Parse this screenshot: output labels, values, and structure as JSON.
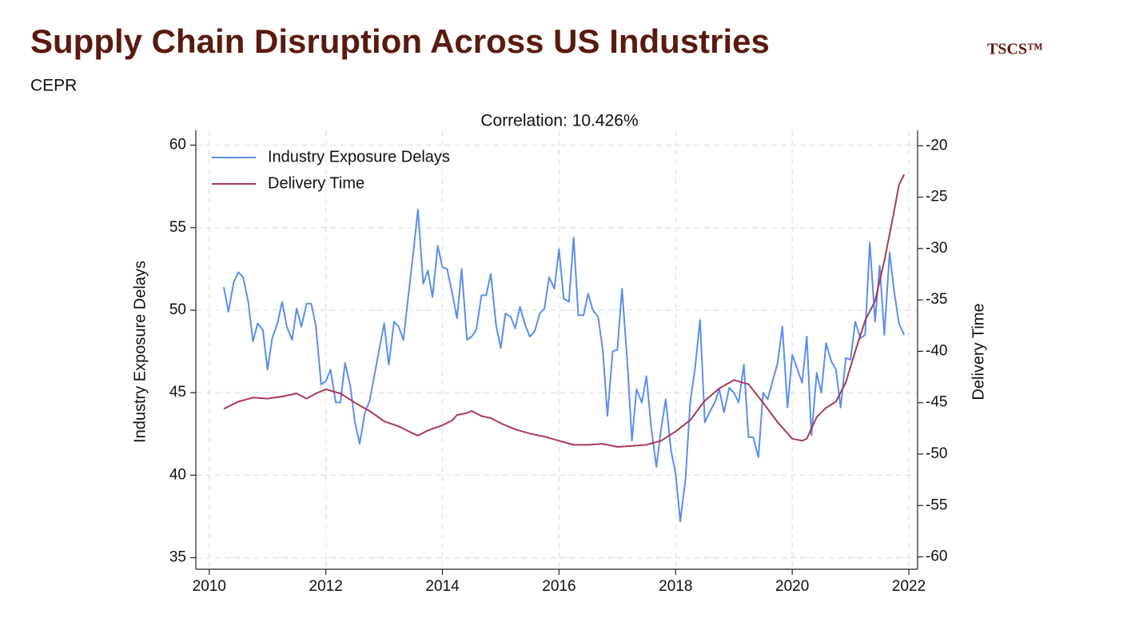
{
  "chart_data": {
    "type": "line",
    "title": "Supply Chain Disruption Across US Industries",
    "subtitle": "CEPR",
    "logo": "TSCS™",
    "chart_title": "Correlation: 10.426%",
    "ylabel": "Industry Exposure Delays",
    "y2label": "Delivery Time",
    "xlim": [
      2009.77,
      2022.15
    ],
    "xticks": [
      2010,
      2012,
      2014,
      2016,
      2018,
      2020,
      2022
    ],
    "ylim": [
      34.3,
      60.9
    ],
    "yticks": [
      35,
      40,
      45,
      50,
      55,
      60
    ],
    "y2lim": [
      -61.2,
      -18.5
    ],
    "y2ticks": [
      -60,
      -55,
      -50,
      -45,
      -40,
      -35,
      -30,
      -25,
      -20
    ],
    "grid": true,
    "legend": "upper left",
    "series": [
      {
        "name": "Industry Exposure Delays",
        "color": "#5b8def",
        "axis": "y",
        "x": [
          2010.25,
          2010.33,
          2010.42,
          2010.5,
          2010.58,
          2010.67,
          2010.75,
          2010.83,
          2010.92,
          2011.0,
          2011.08,
          2011.17,
          2011.25,
          2011.33,
          2011.42,
          2011.5,
          2011.58,
          2011.67,
          2011.75,
          2011.83,
          2011.92,
          2012.0,
          2012.08,
          2012.17,
          2012.25,
          2012.33,
          2012.42,
          2012.5,
          2012.58,
          2012.67,
          2012.75,
          2012.83,
          2012.92,
          2013.0,
          2013.08,
          2013.17,
          2013.25,
          2013.33,
          2013.42,
          2013.5,
          2013.58,
          2013.67,
          2013.75,
          2013.83,
          2013.92,
          2014.0,
          2014.08,
          2014.17,
          2014.25,
          2014.33,
          2014.42,
          2014.5,
          2014.58,
          2014.67,
          2014.75,
          2014.83,
          2014.92,
          2015.0,
          2015.08,
          2015.17,
          2015.25,
          2015.33,
          2015.42,
          2015.5,
          2015.58,
          2015.67,
          2015.75,
          2015.83,
          2015.92,
          2016.0,
          2016.08,
          2016.17,
          2016.25,
          2016.33,
          2016.42,
          2016.5,
          2016.58,
          2016.67,
          2016.75,
          2016.83,
          2016.92,
          2017.0,
          2017.08,
          2017.17,
          2017.25,
          2017.33,
          2017.42,
          2017.5,
          2017.58,
          2017.67,
          2017.75,
          2017.83,
          2017.92,
          2018.0,
          2018.08,
          2018.17,
          2018.25,
          2018.33,
          2018.42,
          2018.5,
          2018.58,
          2018.67,
          2018.75,
          2018.83,
          2018.92,
          2019.0,
          2019.08,
          2019.17,
          2019.25,
          2019.33,
          2019.42,
          2019.5,
          2019.58,
          2019.67,
          2019.75,
          2019.83,
          2019.92,
          2020.0,
          2020.08,
          2020.17,
          2020.25,
          2020.33,
          2020.42,
          2020.5,
          2020.58,
          2020.67,
          2020.75,
          2020.83,
          2020.92,
          2021.0,
          2021.08,
          2021.17,
          2021.25,
          2021.33,
          2021.42,
          2021.5,
          2021.58,
          2021.67,
          2021.75,
          2021.83,
          2021.92
        ],
        "values": [
          51.4,
          49.9,
          51.7,
          52.3,
          52.0,
          50.5,
          48.1,
          49.2,
          48.8,
          46.4,
          48.3,
          49.2,
          50.5,
          49.0,
          48.2,
          50.1,
          49.0,
          50.4,
          50.4,
          49.0,
          45.5,
          45.7,
          46.4,
          44.4,
          44.4,
          46.8,
          45.4,
          43.2,
          41.9,
          43.8,
          44.5,
          46.0,
          47.7,
          49.2,
          46.7,
          49.3,
          49.0,
          48.2,
          51.0,
          53.5,
          56.1,
          51.6,
          52.4,
          50.8,
          53.9,
          52.6,
          52.5,
          51.0,
          49.5,
          52.5,
          48.2,
          48.4,
          48.8,
          50.9,
          50.9,
          52.2,
          49.1,
          47.7,
          49.8,
          49.6,
          48.9,
          50.2,
          49.1,
          48.4,
          48.7,
          49.8,
          50.1,
          52.0,
          51.3,
          53.7,
          50.7,
          50.5,
          54.4,
          49.7,
          49.7,
          51.0,
          50.0,
          49.6,
          47.6,
          43.6,
          47.5,
          47.6,
          51.3,
          46.9,
          42.1,
          45.2,
          44.4,
          46.0,
          42.9,
          40.5,
          42.8,
          44.6,
          41.5,
          40.1,
          37.2,
          39.8,
          44.4,
          46.4,
          49.4,
          43.2,
          43.8,
          44.4,
          45.2,
          43.8,
          45.3,
          45.0,
          44.4,
          46.7,
          42.3,
          42.3,
          41.1,
          45.0,
          44.6,
          45.8,
          46.8,
          49.0,
          44.1,
          47.3,
          46.5,
          45.6,
          48.4,
          42.4,
          46.2,
          45.0,
          48.0,
          46.9,
          46.4,
          44.1,
          47.1,
          47.0,
          49.3,
          48.3,
          48.5,
          54.1,
          49.3,
          52.7,
          48.5,
          53.5,
          51.1,
          49.2,
          48.5
        ]
      },
      {
        "name": "Delivery Time",
        "color": "#a83a55",
        "axis": "y2",
        "x": [
          2010.25,
          2010.5,
          2010.75,
          2011.0,
          2011.25,
          2011.5,
          2011.67,
          2011.83,
          2012.0,
          2012.25,
          2012.5,
          2012.75,
          2013.0,
          2013.25,
          2013.5,
          2013.58,
          2013.75,
          2014.0,
          2014.17,
          2014.25,
          2014.42,
          2014.5,
          2014.67,
          2014.83,
          2015.0,
          2015.25,
          2015.5,
          2015.75,
          2016.0,
          2016.25,
          2016.5,
          2016.75,
          2017.0,
          2017.25,
          2017.5,
          2017.75,
          2018.0,
          2018.25,
          2018.5,
          2018.75,
          2019.0,
          2019.25,
          2019.5,
          2019.75,
          2020.0,
          2020.17,
          2020.25,
          2020.42,
          2020.58,
          2020.75,
          2020.92,
          2021.08,
          2021.25,
          2021.42,
          2021.58,
          2021.75,
          2021.83,
          2021.92
        ],
        "values": [
          -45.6,
          -44.9,
          -44.5,
          -44.6,
          -44.4,
          -44.1,
          -44.6,
          -44.1,
          -43.7,
          -44.1,
          -45.0,
          -45.8,
          -46.8,
          -47.3,
          -48.0,
          -48.2,
          -47.7,
          -47.2,
          -46.7,
          -46.2,
          -46.0,
          -45.8,
          -46.3,
          -46.5,
          -47.0,
          -47.6,
          -48.0,
          -48.3,
          -48.7,
          -49.1,
          -49.1,
          -49.0,
          -49.3,
          -49.2,
          -49.1,
          -48.7,
          -47.8,
          -46.7,
          -44.8,
          -43.6,
          -42.8,
          -43.2,
          -45.0,
          -46.9,
          -48.5,
          -48.7,
          -48.5,
          -46.4,
          -45.5,
          -44.9,
          -43.0,
          -40.0,
          -37.0,
          -35.1,
          -31.2,
          -26.3,
          -23.8,
          -22.8
        ]
      }
    ]
  }
}
